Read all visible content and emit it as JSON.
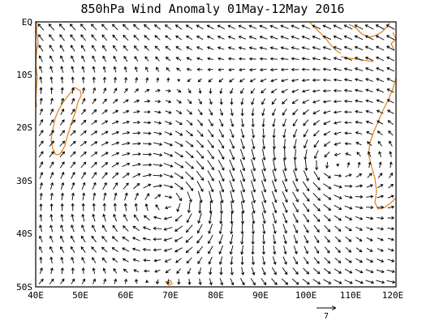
{
  "title": "850hPa Wind Anomaly 01May-12May 2016",
  "y_ticks": [
    "EQ",
    "10S",
    "20S",
    "30S",
    "40S",
    "50S"
  ],
  "x_ticks": [
    "40E",
    "50E",
    "60E",
    "70E",
    "80E",
    "90E",
    "100E",
    "110E",
    "120E"
  ],
  "reference_vector": {
    "value": "7"
  },
  "colors": {
    "coast": "#e08a2a",
    "arrows": "#000000",
    "frame": "#000000"
  },
  "domain": {
    "lon_min": 40,
    "lon_max": 120,
    "lat_min": -50,
    "lat_max": 0
  }
}
